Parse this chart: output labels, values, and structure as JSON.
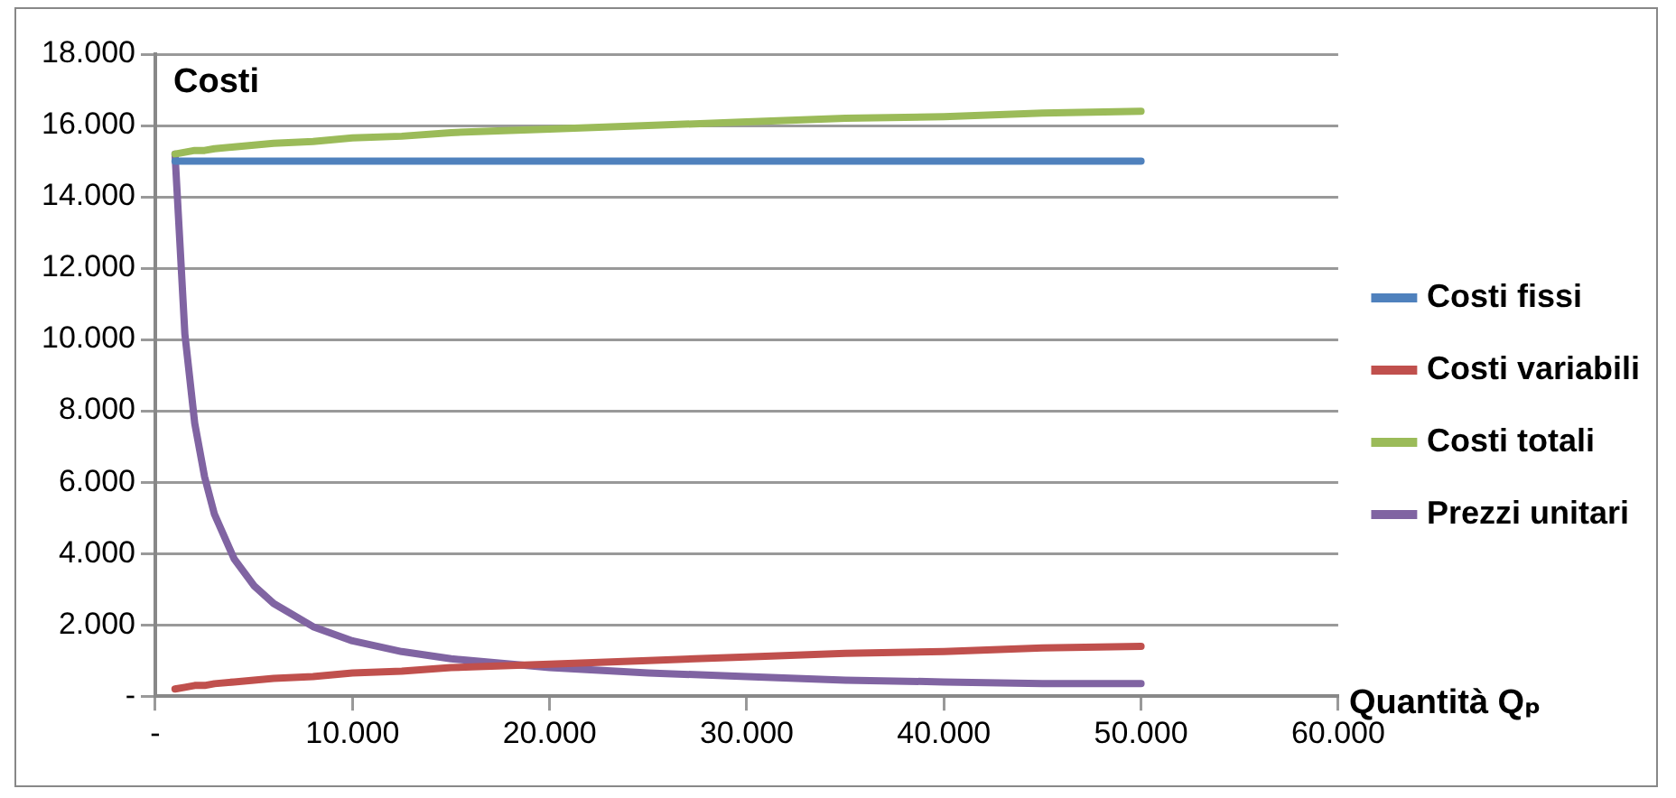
{
  "chart_data": {
    "type": "line",
    "ylabel": "Costi",
    "xlabel": "Quantità Qₚ",
    "x": [
      1000,
      1500,
      2000,
      2500,
      3000,
      4000,
      5000,
      6000,
      8000,
      10000,
      12500,
      15000,
      20000,
      25000,
      30000,
      35000,
      40000,
      45000,
      50000
    ],
    "series": [
      {
        "name": "Costi fissi",
        "color": "#4f81bd",
        "values": [
          15000,
          15000,
          15000,
          15000,
          15000,
          15000,
          15000,
          15000,
          15000,
          15000,
          15000,
          15000,
          15000,
          15000,
          15000,
          15000,
          15000,
          15000,
          15000
        ]
      },
      {
        "name": "Costi variabili",
        "color": "#c0504d",
        "values": [
          200,
          250,
          300,
          300,
          350,
          400,
          450,
          500,
          550,
          650,
          700,
          800,
          900,
          1000,
          1100,
          1200,
          1250,
          1350,
          1400
        ]
      },
      {
        "name": "Costi totali",
        "color": "#9bbb59",
        "values": [
          15200,
          15250,
          15300,
          15300,
          15350,
          15400,
          15450,
          15500,
          15550,
          15650,
          15700,
          15800,
          15900,
          16000,
          16100,
          16200,
          16250,
          16350,
          16400
        ]
      },
      {
        "name": "Prezzi unitari",
        "color": "#8064a2",
        "values": [
          15200,
          10150,
          7650,
          6150,
          5100,
          3850,
          3100,
          2600,
          1950,
          1550,
          1250,
          1050,
          800,
          650,
          550,
          450,
          400,
          350,
          350
        ]
      }
    ],
    "xlim": [
      0,
      60000
    ],
    "xticks": [
      {
        "value": 0,
        "label": "-"
      },
      {
        "value": 10000,
        "label": "10.000"
      },
      {
        "value": 20000,
        "label": "20.000"
      },
      {
        "value": 30000,
        "label": "30.000"
      },
      {
        "value": 40000,
        "label": "40.000"
      },
      {
        "value": 50000,
        "label": "50.000"
      },
      {
        "value": 60000,
        "label": "60.000"
      }
    ],
    "ylim": [
      0,
      18000
    ],
    "yticks": [
      {
        "value": 0,
        "label": "-"
      },
      {
        "value": 2000,
        "label": "2.000"
      },
      {
        "value": 4000,
        "label": "4.000"
      },
      {
        "value": 6000,
        "label": "6.000"
      },
      {
        "value": 8000,
        "label": "8.000"
      },
      {
        "value": 10000,
        "label": "10.000"
      },
      {
        "value": 12000,
        "label": "12.000"
      },
      {
        "value": 14000,
        "label": "14.000"
      },
      {
        "value": 16000,
        "label": "16.000"
      },
      {
        "value": 18000,
        "label": "18.000"
      }
    ],
    "grid": "y",
    "legend": "right",
    "marker": "none",
    "line_style": "solid"
  }
}
